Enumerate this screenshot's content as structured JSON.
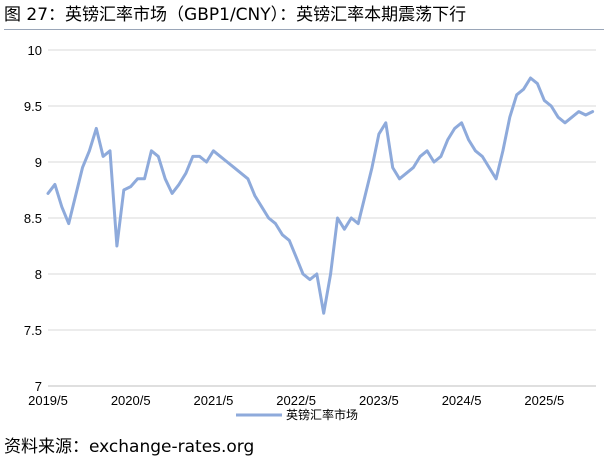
{
  "figure_title": "图 27：英镑汇率市场（GBP1/CNY）：英镑汇率本期震荡下行",
  "source": "资料来源：exchange-rates.org",
  "colors": {
    "series": "#8eaadb",
    "grid": "#d9d9d9",
    "axis": "#bfbfbf",
    "rule": "#9aa6b8"
  },
  "chart_data": {
    "type": "line",
    "title": "",
    "xlabel": "",
    "ylabel": "",
    "ylim": [
      7,
      10
    ],
    "yticks": [
      "7",
      "7.5",
      "8",
      "8.5",
      "9",
      "9.5",
      "10"
    ],
    "xticks": [
      "2019/5",
      "2020/5",
      "2021/5",
      "2022/5",
      "2023/5",
      "2024/5",
      "2025/5"
    ],
    "grid": "horizontal",
    "legend_position": "bottom",
    "series": [
      {
        "name": "英镑汇率市场",
        "color": "#8eaadb",
        "x": [
          "2019/5",
          "2019/6",
          "2019/7",
          "2019/8",
          "2019/9",
          "2019/10",
          "2019/11",
          "2019/12",
          "2020/1",
          "2020/2",
          "2020/3",
          "2020/4",
          "2020/5",
          "2020/6",
          "2020/7",
          "2020/8",
          "2020/9",
          "2020/10",
          "2020/11",
          "2020/12",
          "2021/1",
          "2021/2",
          "2021/3",
          "2021/4",
          "2021/5",
          "2021/6",
          "2021/7",
          "2021/8",
          "2021/9",
          "2021/10",
          "2021/11",
          "2021/12",
          "2022/1",
          "2022/2",
          "2022/3",
          "2022/4",
          "2022/5",
          "2022/6",
          "2022/7",
          "2022/8",
          "2022/9",
          "2022/10",
          "2022/11",
          "2022/12",
          "2023/1",
          "2023/2",
          "2023/3",
          "2023/4",
          "2023/5",
          "2023/6",
          "2023/7",
          "2023/8",
          "2023/9",
          "2023/10",
          "2023/11",
          "2023/12",
          "2024/1",
          "2024/2",
          "2024/3",
          "2024/4",
          "2024/5",
          "2024/6",
          "2024/7",
          "2024/8",
          "2024/9",
          "2024/10",
          "2024/11",
          "2024/12",
          "2025/1",
          "2025/2",
          "2025/3",
          "2025/4",
          "2025/5",
          "2025/6",
          "2025/7",
          "2025/8",
          "2025/9",
          "2025/10",
          "2025/11",
          "2025/12"
        ],
        "values": [
          8.72,
          8.8,
          8.6,
          8.45,
          8.7,
          8.95,
          9.1,
          9.3,
          9.05,
          9.1,
          8.25,
          8.75,
          8.78,
          8.85,
          8.85,
          9.1,
          9.05,
          8.85,
          8.72,
          8.8,
          8.9,
          9.05,
          9.05,
          9.0,
          9.1,
          9.05,
          9.0,
          8.95,
          8.9,
          8.85,
          8.7,
          8.6,
          8.5,
          8.45,
          8.35,
          8.3,
          8.15,
          8.0,
          7.95,
          8.0,
          7.65,
          8.0,
          8.5,
          8.4,
          8.5,
          8.45,
          8.7,
          8.95,
          9.25,
          9.35,
          8.95,
          8.85,
          8.9,
          8.95,
          9.05,
          9.1,
          9.0,
          9.05,
          9.2,
          9.3,
          9.35,
          9.2,
          9.1,
          9.05,
          8.95,
          8.85,
          9.1,
          9.4,
          9.6,
          9.65,
          9.75,
          9.7,
          9.55,
          9.5,
          9.4,
          9.35,
          9.4,
          9.45,
          9.42,
          9.45
        ]
      }
    ]
  }
}
